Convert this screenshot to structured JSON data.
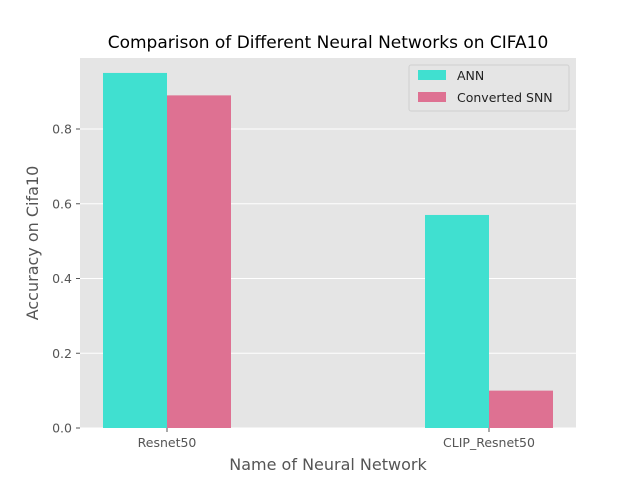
{
  "chart_data": {
    "type": "bar",
    "title": "Comparison of Different Neural Networks on CIFA10",
    "xlabel": "Name of Neural Network",
    "ylabel": "Accuracy on Cifa10",
    "categories": [
      "Resnet50",
      "CLIP_Resnet50"
    ],
    "series": [
      {
        "name": "ANN",
        "values": [
          0.95,
          0.57
        ],
        "color": "#40e0d0"
      },
      {
        "name": "Converted SNN",
        "values": [
          0.89,
          0.1
        ],
        "color": "#de7192"
      }
    ],
    "ylim": [
      0,
      0.99
    ],
    "yticks": [
      "0.0",
      "0.2",
      "0.4",
      "0.6",
      "0.8"
    ],
    "grid": true,
    "legend_position": "top-right",
    "background_color": "#e5e5e5"
  }
}
